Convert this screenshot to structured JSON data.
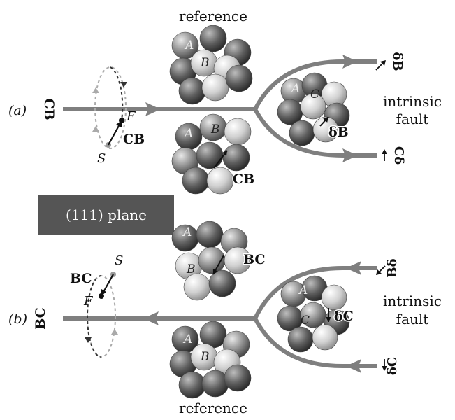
{
  "labels": {
    "reference_top": "reference",
    "reference_bottom": "reference",
    "panel_a": "(a)",
    "panel_b": "(b)",
    "plane_box": "(111) plane",
    "intrinsic_a_1": "intrinsic",
    "intrinsic_a_2": "fault",
    "intrinsic_b_1": "intrinsic",
    "intrinsic_b_2": "fault"
  },
  "panel_a": {
    "incoming": "CB",
    "circuit_start": "S",
    "circuit_finish": "F",
    "burgers": "CB",
    "branch_top": "δB",
    "branch_bottom": "Cδ",
    "cluster_burgers": "CB",
    "fault_vector": "δB",
    "atoms": {
      "A": "A",
      "B": "B",
      "C": "C"
    }
  },
  "panel_b": {
    "outgoing": "BC",
    "circuit_start": "S",
    "circuit_finish": "F",
    "burgers": "BC",
    "branch_top": "Bδ",
    "branch_bottom": "δC",
    "cluster_burgers": "BC",
    "fault_vector": "δC",
    "atoms": {
      "A": "A",
      "B": "B",
      "C": "C"
    }
  },
  "colors": {
    "line": "#7f7f7f",
    "box": "#555555",
    "box_text": "#ffffff",
    "atom_dark": "#5a5a5a",
    "atom_light": "#d8d8d8"
  }
}
